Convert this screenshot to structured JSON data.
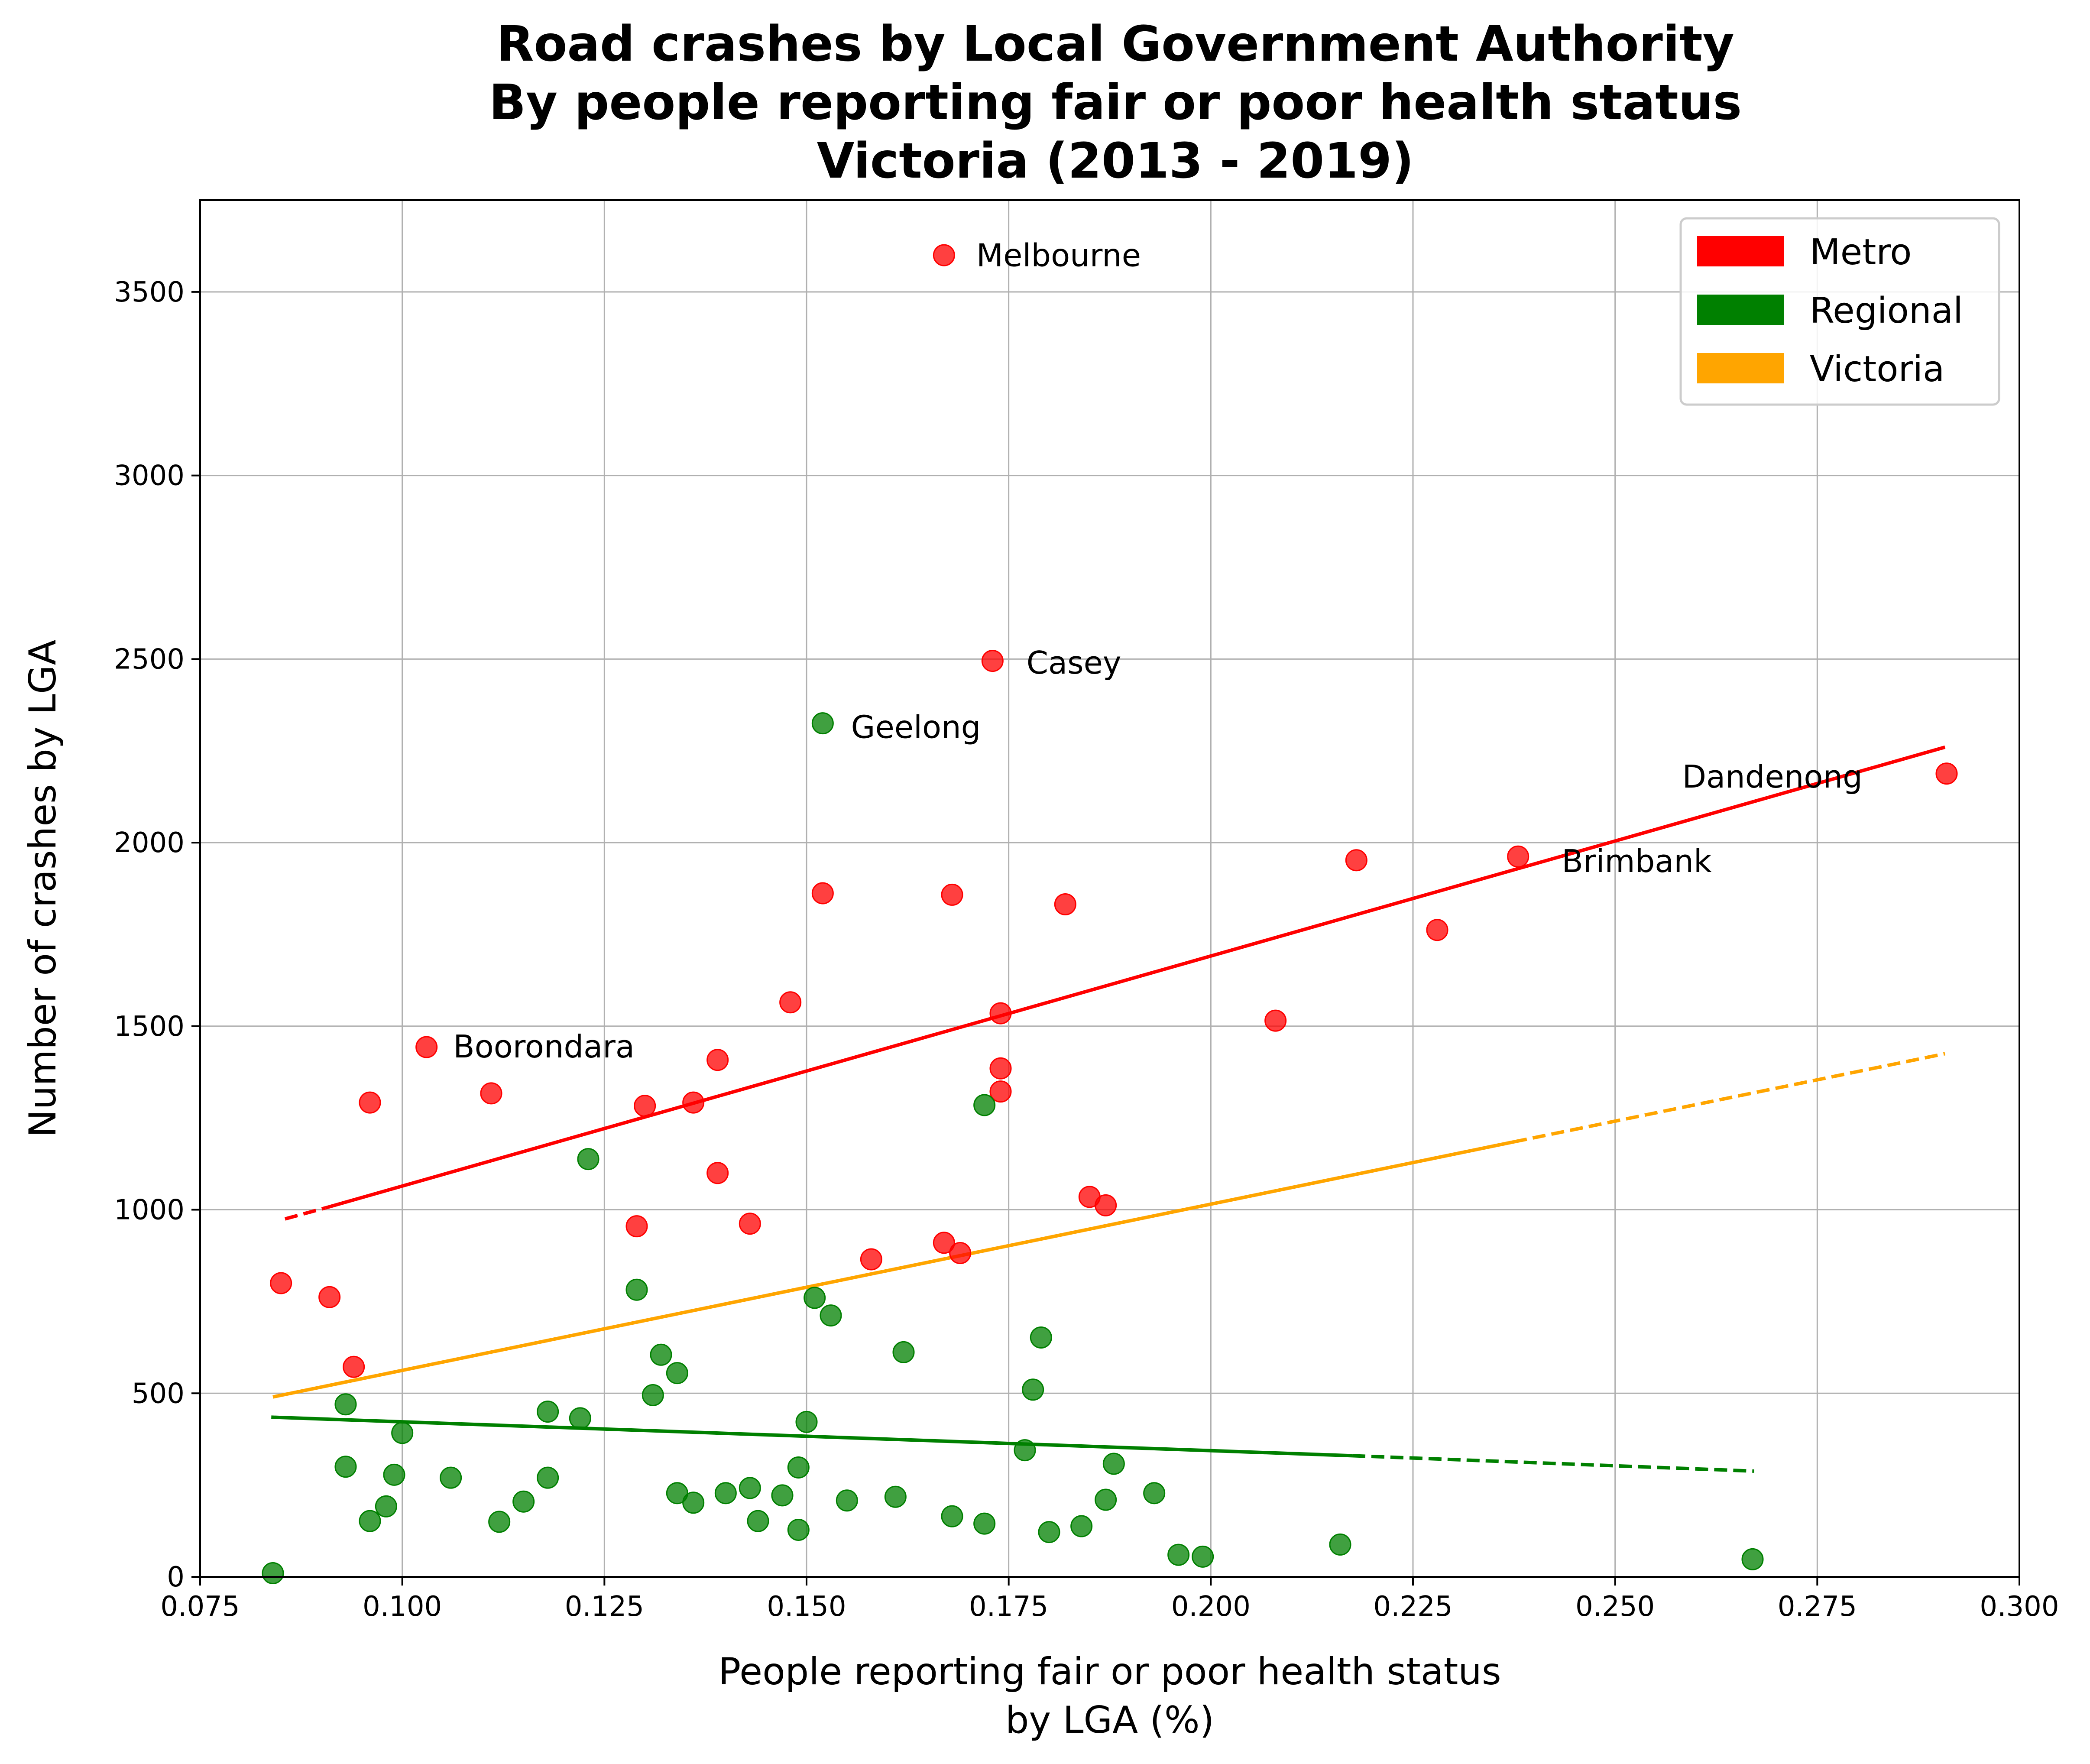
{
  "chart_data": {
    "type": "scatter",
    "title": [
      "Road crashes by Local Government Authority",
      "By people reporting fair or poor health status",
      "Victoria (2013 - 2019)"
    ],
    "xlabel": [
      "People reporting fair or poor health status",
      "by LGA (%)"
    ],
    "ylabel": "Number of crashes by LGA",
    "xlim": [
      0.075,
      0.3
    ],
    "ylim": [
      0,
      3750
    ],
    "xticks": [
      "0.075",
      "0.100",
      "0.125",
      "0.150",
      "0.175",
      "0.200",
      "0.225",
      "0.250",
      "0.275",
      "0.300"
    ],
    "yticks": [
      "0",
      "500",
      "1000",
      "1500",
      "2000",
      "2500",
      "3000",
      "3500"
    ],
    "grid": true,
    "legend_position": "top-right",
    "colors": {
      "Metro": "#ff0000",
      "Regional": "#008000",
      "Victoria": "#ffa500"
    },
    "legend": [
      "Metro",
      "Regional",
      "Victoria"
    ],
    "series": [
      {
        "name": "Metro",
        "points": [
          [
            0.085,
            800
          ],
          [
            0.091,
            762
          ],
          [
            0.094,
            572
          ],
          [
            0.096,
            1292
          ],
          [
            0.103,
            1443
          ],
          [
            0.111,
            1317
          ],
          [
            0.129,
            955
          ],
          [
            0.13,
            1283
          ],
          [
            0.136,
            1292
          ],
          [
            0.139,
            1408
          ],
          [
            0.139,
            1100
          ],
          [
            0.143,
            962
          ],
          [
            0.148,
            1565
          ],
          [
            0.152,
            1862
          ],
          [
            0.158,
            865
          ],
          [
            0.167,
            3600
          ],
          [
            0.167,
            910
          ],
          [
            0.168,
            1858
          ],
          [
            0.169,
            882
          ],
          [
            0.173,
            2495
          ],
          [
            0.174,
            1535
          ],
          [
            0.174,
            1385
          ],
          [
            0.174,
            1322
          ],
          [
            0.182,
            1832
          ],
          [
            0.185,
            1035
          ],
          [
            0.187,
            1012
          ],
          [
            0.208,
            1515
          ],
          [
            0.218,
            1952
          ],
          [
            0.228,
            1762
          ],
          [
            0.238,
            1962
          ],
          [
            0.291,
            2188
          ]
        ]
      },
      {
        "name": "Regional",
        "points": [
          [
            0.084,
            10
          ],
          [
            0.093,
            470
          ],
          [
            0.093,
            300
          ],
          [
            0.096,
            152
          ],
          [
            0.098,
            192
          ],
          [
            0.099,
            278
          ],
          [
            0.1,
            392
          ],
          [
            0.106,
            270
          ],
          [
            0.112,
            150
          ],
          [
            0.115,
            205
          ],
          [
            0.118,
            450
          ],
          [
            0.118,
            270
          ],
          [
            0.122,
            432
          ],
          [
            0.123,
            1138
          ],
          [
            0.129,
            782
          ],
          [
            0.131,
            495
          ],
          [
            0.132,
            605
          ],
          [
            0.134,
            555
          ],
          [
            0.134,
            228
          ],
          [
            0.136,
            202
          ],
          [
            0.14,
            228
          ],
          [
            0.143,
            242
          ],
          [
            0.144,
            152
          ],
          [
            0.147,
            222
          ],
          [
            0.149,
            298
          ],
          [
            0.149,
            128
          ],
          [
            0.15,
            422
          ],
          [
            0.151,
            760
          ],
          [
            0.152,
            2325
          ],
          [
            0.153,
            712
          ],
          [
            0.155,
            208
          ],
          [
            0.161,
            218
          ],
          [
            0.162,
            612
          ],
          [
            0.168,
            165
          ],
          [
            0.172,
            1285
          ],
          [
            0.172,
            145
          ],
          [
            0.177,
            345
          ],
          [
            0.178,
            510
          ],
          [
            0.179,
            652
          ],
          [
            0.18,
            122
          ],
          [
            0.184,
            138
          ],
          [
            0.187,
            210
          ],
          [
            0.188,
            308
          ],
          [
            0.193,
            228
          ],
          [
            0.196,
            60
          ],
          [
            0.199,
            55
          ],
          [
            0.216,
            88
          ],
          [
            0.267,
            48
          ]
        ]
      }
    ],
    "trendlines": [
      {
        "name": "Metro",
        "style": "dashed-then-solid",
        "segments": [
          {
            "x": [
              0.0855,
              0.0905
            ],
            "y": [
              975,
              1005
            ],
            "dash": true
          },
          {
            "x": [
              0.0905,
              0.2908
            ],
            "y": [
              1005,
              2260
            ],
            "dash": false
          }
        ]
      },
      {
        "name": "Victoria",
        "style": "solid-then-dashed",
        "segments": [
          {
            "x": [
              0.084,
              0.2375
            ],
            "y": [
              490,
              1185
            ],
            "dash": false
          },
          {
            "x": [
              0.2375,
              0.2908
            ],
            "y": [
              1185,
              1425
            ],
            "dash": true
          }
        ]
      },
      {
        "name": "Regional",
        "style": "solid-then-dashed",
        "segments": [
          {
            "x": [
              0.0838,
              0.2175
            ],
            "y": [
              435,
              330
            ],
            "dash": false
          },
          {
            "x": [
              0.2175,
              0.2672
            ],
            "y": [
              330,
              288
            ],
            "dash": true
          }
        ]
      }
    ],
    "annotations": [
      {
        "text": "Melbourne",
        "x": 0.171,
        "y": 3570
      },
      {
        "text": "Casey",
        "x": 0.1772,
        "y": 2460
      },
      {
        "text": "Geelong",
        "x": 0.1555,
        "y": 2285
      },
      {
        "text": "Dandenong",
        "x": 0.2583,
        "y": 2150
      },
      {
        "text": "Brimbank",
        "x": 0.2434,
        "y": 1920
      },
      {
        "text": "Boorondara",
        "x": 0.1063,
        "y": 1415
      }
    ]
  }
}
